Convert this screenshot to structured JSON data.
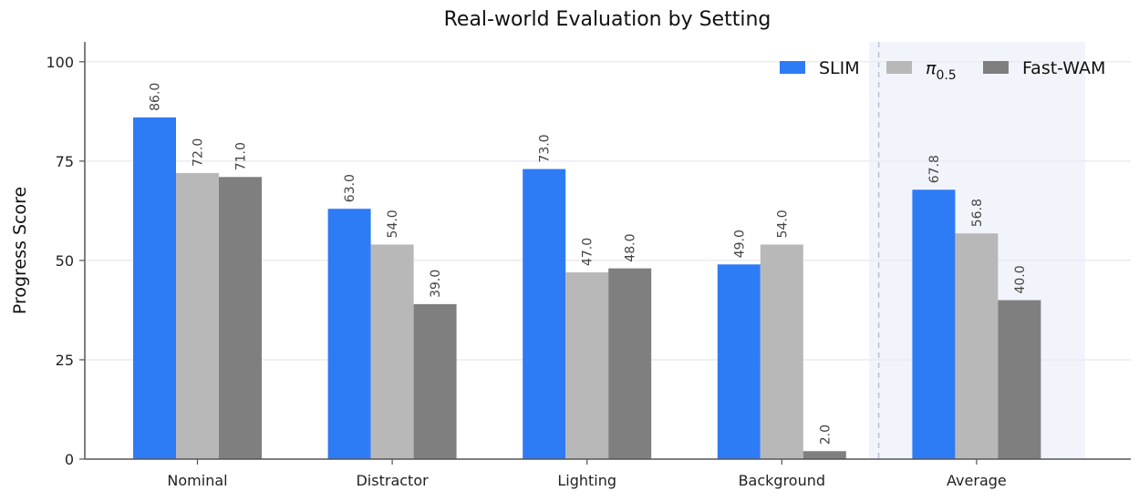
{
  "chart_data": {
    "type": "bar",
    "title": "Real-world Evaluation by Setting",
    "xlabel": "",
    "ylabel": "Progress Score",
    "categories": [
      "Nominal",
      "Distractor",
      "Lighting",
      "Background",
      "Average"
    ],
    "series": [
      {
        "name": "SLIM",
        "values": [
          86.0,
          63.0,
          73.0,
          49.0,
          67.8
        ],
        "color": "#2E7BF6"
      },
      {
        "name": "π0.5",
        "name_base": "π",
        "name_sub": "0.5",
        "values": [
          72.0,
          54.0,
          47.0,
          54.0,
          56.8
        ],
        "color": "#B8B8B8"
      },
      {
        "name": "Fast-WAM",
        "values": [
          71.0,
          39.0,
          48.0,
          2.0,
          40.0
        ],
        "color": "#7F7F7F"
      }
    ],
    "value_labels": [
      [
        "86.0",
        "63.0",
        "73.0",
        "49.0",
        "67.8"
      ],
      [
        "72.0",
        "54.0",
        "47.0",
        "54.0",
        "56.8"
      ],
      [
        "71.0",
        "39.0",
        "48.0",
        "2.0",
        "40.0"
      ]
    ],
    "ylim": [
      0,
      105
    ],
    "yticks": [
      0,
      25,
      50,
      75,
      100
    ],
    "ytick_labels": [
      "0",
      "25",
      "50",
      "75",
      "100"
    ],
    "grid": true,
    "legend_position": "top-right",
    "highlighted_category": "Average",
    "highlight_color": "#F1F5FB",
    "grid_color": "#E9ECF1",
    "axis_color": "#555555",
    "separator_color": "#B8C2CF"
  }
}
